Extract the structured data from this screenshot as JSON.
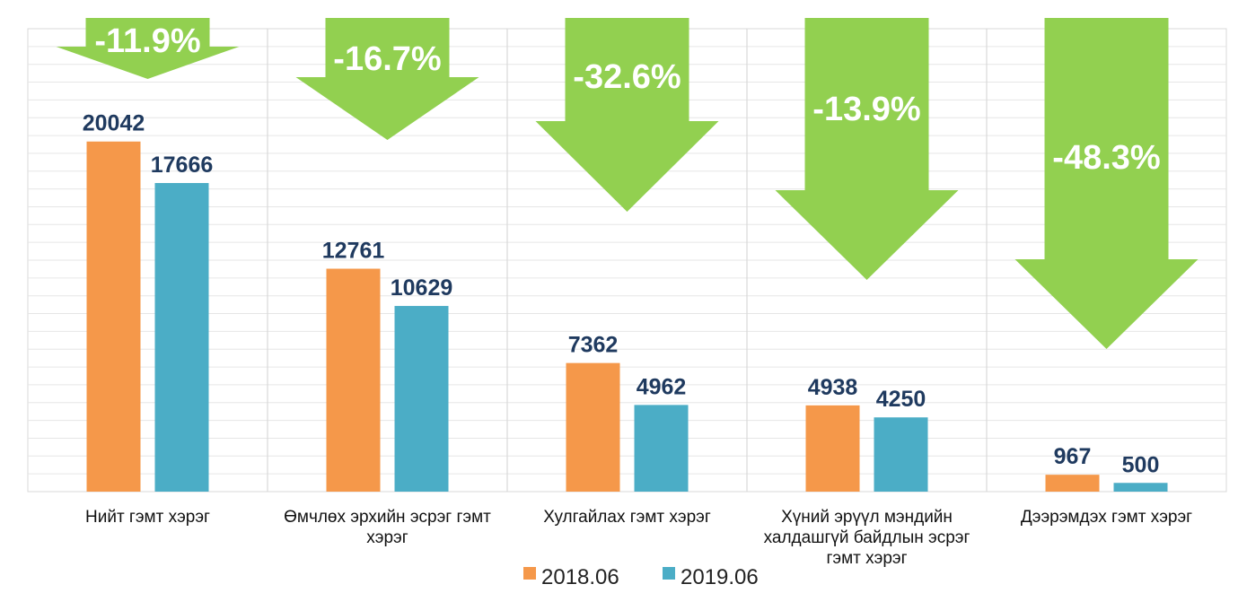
{
  "chart_data": {
    "type": "bar",
    "categories": [
      [
        "Нийт гэмт хэрэг"
      ],
      [
        "Өмчлөх эрхийн эсрэг гэмт",
        "хэрэг"
      ],
      [
        "Хулгайлах гэмт хэрэг"
      ],
      [
        "Хүний эрүүл мэндийн",
        "халдашгүй байдлын эсрэг",
        "гэмт хэрэг"
      ],
      [
        "Дээрэмдэх гэмт хэрэг"
      ]
    ],
    "series": [
      {
        "name": "2018.06",
        "color": "#f5984a",
        "values": [
          20042,
          12761,
          7362,
          4938,
          967
        ]
      },
      {
        "name": "2019.06",
        "color": "#4badc6",
        "values": [
          17666,
          10629,
          4962,
          4250,
          500
        ]
      }
    ],
    "changes": [
      "-11.9%",
      "-16.7%",
      "-32.6%",
      "-13.9%",
      "-48.3%"
    ],
    "arrow_color": "#92d050",
    "ylim": [
      0,
      26500
    ],
    "grid": true,
    "legend_position": "bottom"
  }
}
